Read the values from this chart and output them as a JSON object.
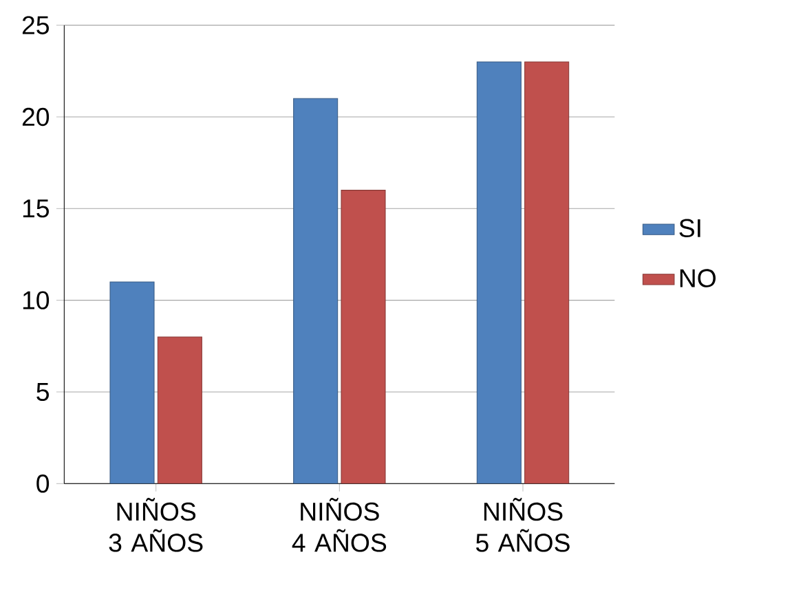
{
  "chart_data": {
    "type": "bar",
    "categories": [
      "NIÑOS 3 AÑOS",
      "NIÑOS 4 AÑOS",
      "NIÑOS 5 AÑOS"
    ],
    "series": [
      {
        "name": "SI",
        "color": "#4f81bd",
        "values": [
          11,
          21,
          23
        ]
      },
      {
        "name": "NO",
        "color": "#c0504d",
        "values": [
          8,
          16,
          23
        ]
      }
    ],
    "ylim": [
      0,
      25
    ],
    "yticks": [
      0,
      5,
      10,
      15,
      20,
      25
    ],
    "grid": "y",
    "legend": "right"
  }
}
